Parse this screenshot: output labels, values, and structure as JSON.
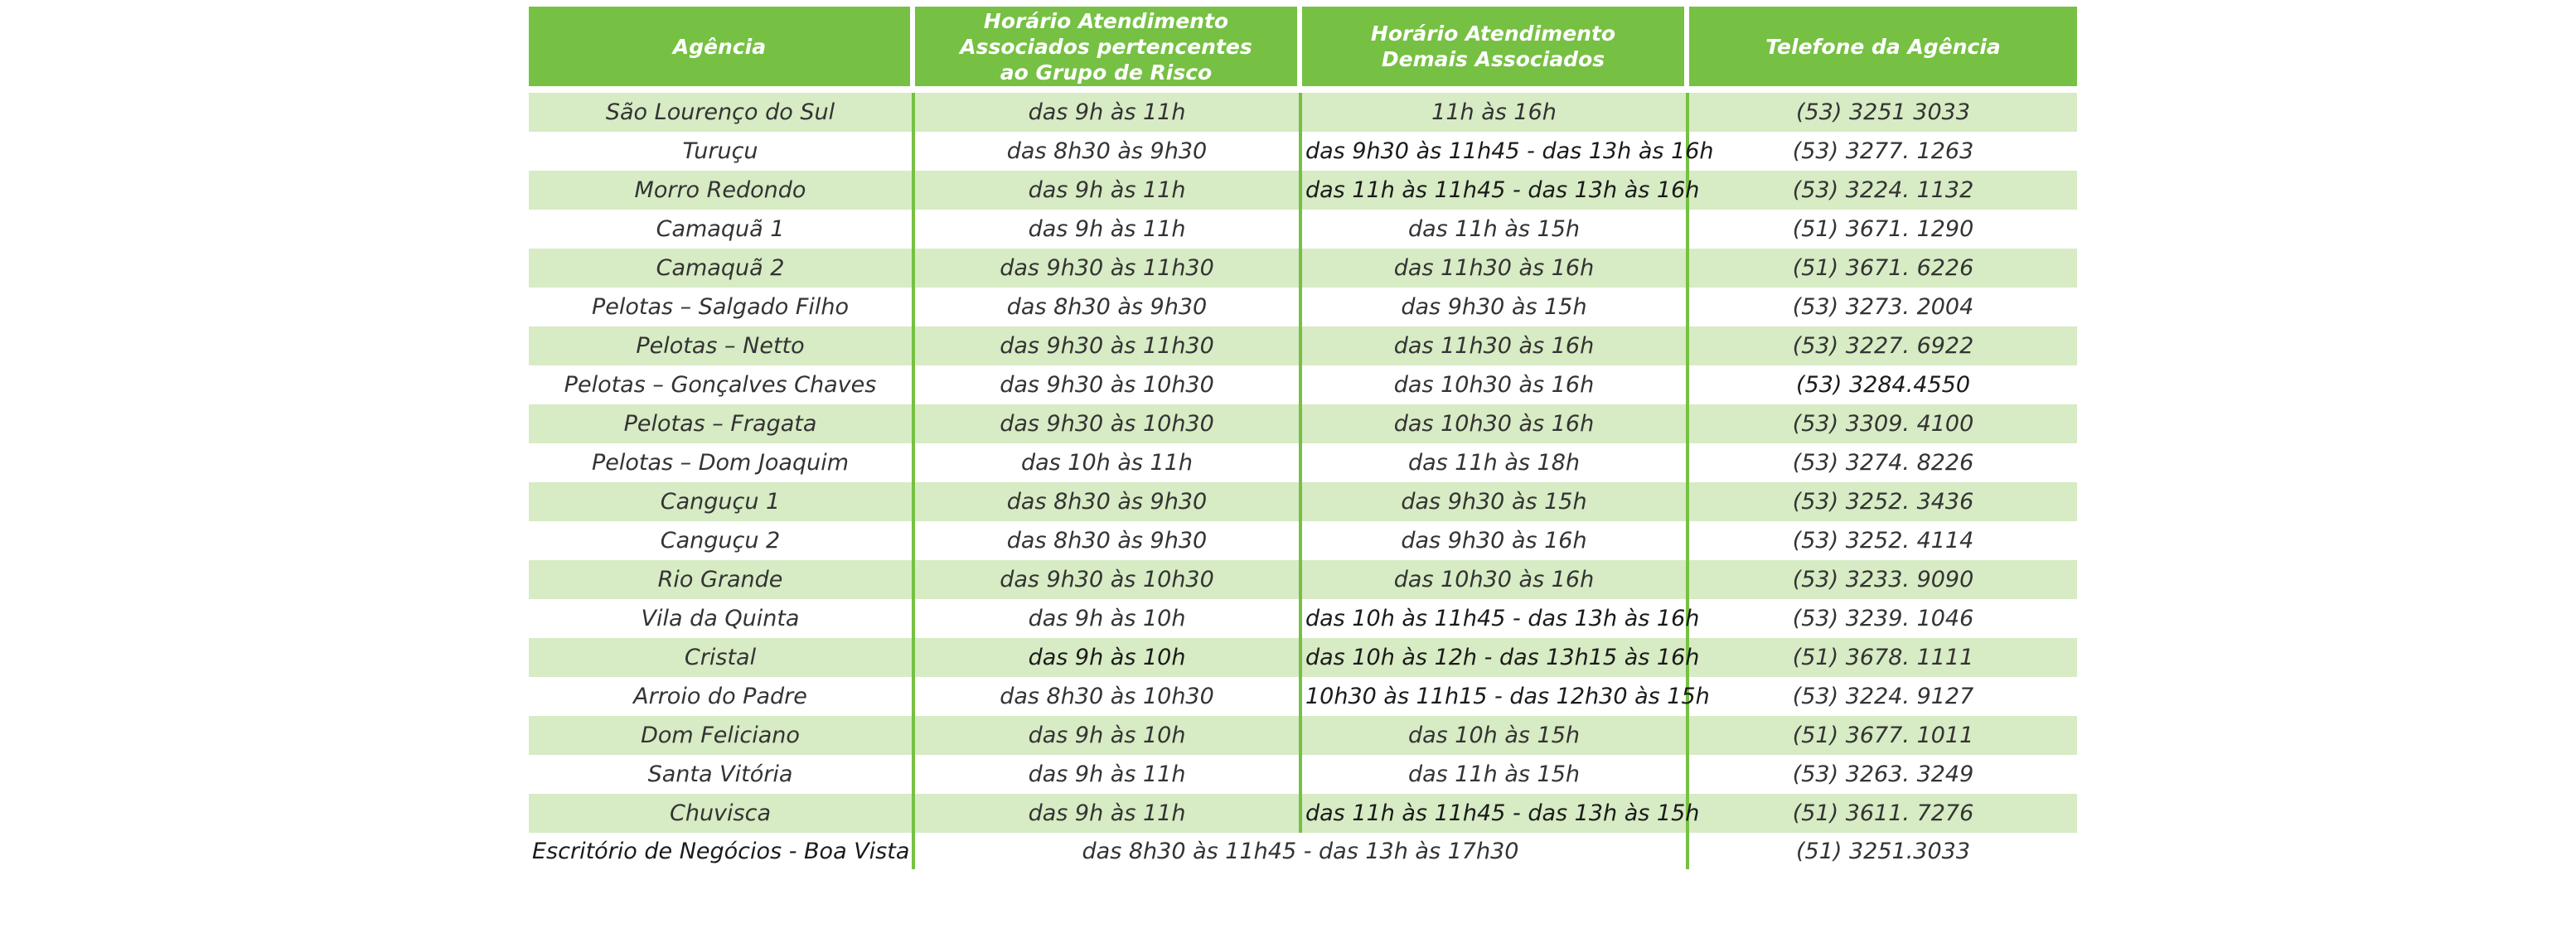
{
  "headers": {
    "agency": "Agência",
    "risk_group": [
      "Horário Atendimento",
      "Associados pertencentes",
      "ao Grupo de Risco"
    ],
    "others": [
      "Horário Atendimento",
      "Demais Associados"
    ],
    "phone": "Telefone da Agência"
  },
  "rows": [
    {
      "agency": "São Lourenço do Sul",
      "risk": "das 9h às 11h",
      "others": "11h às 16h",
      "phone": "(53) 3251 3033"
    },
    {
      "agency": "Turuçu",
      "risk": "das 8h30 às 9h30",
      "others": "das 9h30 às 11h45 - das 13h às 16h",
      "phone": "(53) 3277. 1263"
    },
    {
      "agency": "Morro Redondo",
      "risk": "das 9h às 11h",
      "others": "das 11h às 11h45 - das 13h às 16h",
      "phone": "(53) 3224. 1132"
    },
    {
      "agency": "Camaquã 1",
      "risk": "das 9h às 11h",
      "others": "das 11h às 15h",
      "phone": "(51) 3671. 1290"
    },
    {
      "agency": "Camaquã 2",
      "risk": "das 9h30 às 11h30",
      "others": "das 11h30 às 16h",
      "phone": "(51) 3671. 6226"
    },
    {
      "agency": "Pelotas – Salgado Filho",
      "risk": "das 8h30 às 9h30",
      "others": "das 9h30 às 15h",
      "phone": "(53) 3273. 2004"
    },
    {
      "agency": "Pelotas – Netto",
      "risk": "das 9h30 às 11h30",
      "others": "das 11h30 às 16h",
      "phone": "(53) 3227. 6922"
    },
    {
      "agency": "Pelotas – Gonçalves Chaves",
      "risk": "das 9h30 às 10h30",
      "others": "das 10h30 às 16h",
      "phone": "(53) 3284.4550"
    },
    {
      "agency": "Pelotas – Fragata",
      "risk": "das 9h30 às 10h30",
      "others": "das 10h30 às 16h",
      "phone": "(53) 3309. 4100"
    },
    {
      "agency": "Pelotas – Dom Joaquim",
      "risk": "das 10h às 11h",
      "others": "das 11h às 18h",
      "phone": "(53) 3274. 8226"
    },
    {
      "agency": "Canguçu 1",
      "risk": "das 8h30 às 9h30",
      "others": "das 9h30 às 15h",
      "phone": "(53) 3252. 3436"
    },
    {
      "agency": "Canguçu 2",
      "risk": "das 8h30 às 9h30",
      "others": "das 9h30 às 16h",
      "phone": "(53) 3252. 4114"
    },
    {
      "agency": "Rio Grande",
      "risk": "das 9h30 às 10h30",
      "others": "das 10h30 às 16h",
      "phone": "(53) 3233. 9090"
    },
    {
      "agency": "Vila da Quinta",
      "risk": "das 9h às 10h",
      "others": "das 10h às 11h45 - das 13h às 16h",
      "phone": "(53) 3239. 1046"
    },
    {
      "agency": "Cristal",
      "risk": "das 9h às 10h",
      "others": "das 10h às 12h - das 13h15 às 16h",
      "phone": "(51) 3678. 1111"
    },
    {
      "agency": "Arroio do Padre",
      "risk": "das 8h30 às 10h30",
      "others": "10h30 às 11h15 - das 12h30 às 15h",
      "phone": "(53) 3224. 9127"
    },
    {
      "agency": "Dom Feliciano",
      "risk": "das 9h às 10h",
      "others": "das 10h às 15h",
      "phone": "(51) 3677. 1011"
    },
    {
      "agency": "Santa Vitória",
      "risk": "das 9h às 11h",
      "others": "das 11h às 15h",
      "phone": "(53) 3263. 3249"
    },
    {
      "agency": "Chuvisca",
      "risk": "das 9h às 11h",
      "others": "das 11h às 11h45 - das 13h às 15h",
      "phone": "(51) 3611. 7276"
    }
  ],
  "last_row": {
    "agency": "Escritório de Negócios - Boa Vista",
    "hours": "das 8h30 às 11h45 - das 13h às 17h30",
    "phone": "(51) 3251.3033"
  },
  "colors": {
    "header_green": "#76c043",
    "row_shade": "#d7ebc4",
    "divider_green": "#76c043"
  }
}
